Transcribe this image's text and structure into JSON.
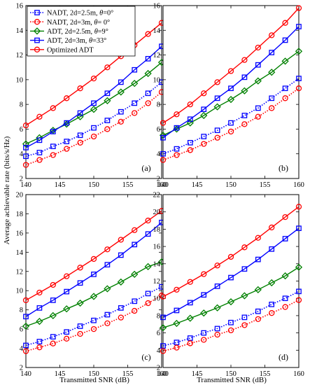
{
  "figure": {
    "ylabel": "Average achievable rate (bits/s/Hz)",
    "xlabel": "Transmitted SNR (dB)"
  },
  "legend": [
    {
      "label": "NADT, 2d=2.5m, θ=0°",
      "color": "#0000ff",
      "marker": "square",
      "dash": "dot"
    },
    {
      "label": "NADT, 2d=3m, θ= 0°",
      "color": "#ff0000",
      "marker": "circle",
      "dash": "dot"
    },
    {
      "label": "ADT, 2d=2.5m, θ=9°",
      "color": "#008000",
      "marker": "diamond",
      "dash": "solid"
    },
    {
      "label": "ADT, 2d=3m, θ=33°",
      "color": "#0000ff",
      "marker": "square",
      "dash": "solid"
    },
    {
      "label": "Optimized ADT",
      "color": "#ff0000",
      "marker": "circle",
      "dash": "solid"
    }
  ],
  "chart_data": [
    {
      "type": "line",
      "panel_label": "(a)",
      "x": [
        140,
        142,
        144,
        146,
        148,
        150,
        152,
        154,
        156,
        158,
        160
      ],
      "xlim": [
        140,
        160
      ],
      "ylim": [
        2,
        16
      ],
      "xticks": [
        "140",
        "145",
        "150",
        "155",
        "160"
      ],
      "yticks": [
        "2",
        "4",
        "6",
        "8",
        "10",
        "12",
        "14",
        "16"
      ],
      "series": [
        {
          "name": "NADT, 2d=2.5m, θ=0°",
          "color": "#0000ff",
          "marker": "square",
          "dash": "dot",
          "values": [
            3.8,
            4.1,
            4.6,
            5.0,
            5.5,
            6.1,
            6.7,
            7.4,
            8.1,
            8.9,
            9.8
          ]
        },
        {
          "name": "NADT, 2d=3m, θ= 0°",
          "color": "#ff0000",
          "marker": "circle",
          "dash": "dot",
          "values": [
            3.1,
            3.5,
            3.9,
            4.4,
            4.9,
            5.4,
            6.0,
            6.6,
            7.3,
            8.1,
            9.0
          ]
        },
        {
          "name": "ADT, 2d=2.5m, θ=9°",
          "color": "#008000",
          "marker": "diamond",
          "dash": "solid",
          "values": [
            4.8,
            5.3,
            5.9,
            6.4,
            7.0,
            7.6,
            8.3,
            9.0,
            9.7,
            10.5,
            11.4
          ]
        },
        {
          "name": "ADT, 2d=3m, θ=33°",
          "color": "#0000ff",
          "marker": "square",
          "dash": "solid",
          "values": [
            4.5,
            5.1,
            5.8,
            6.5,
            7.3,
            8.1,
            8.9,
            9.8,
            10.8,
            11.7,
            12.7
          ]
        },
        {
          "name": "Optimized ADT",
          "color": "#ff0000",
          "marker": "circle",
          "dash": "solid",
          "values": [
            6.3,
            7.0,
            7.7,
            8.5,
            9.3,
            10.1,
            11.0,
            11.9,
            12.8,
            13.7,
            14.6
          ]
        }
      ]
    },
    {
      "type": "line",
      "panel_label": "(b)",
      "x": [
        140,
        142,
        144,
        146,
        148,
        150,
        152,
        154,
        156,
        158,
        160
      ],
      "xlim": [
        140,
        160
      ],
      "ylim": [
        2,
        16
      ],
      "xticks": [
        "140",
        "145",
        "150",
        "155",
        "160"
      ],
      "yticks": [
        "2",
        "4",
        "6",
        "8",
        "10",
        "12",
        "14",
        "16"
      ],
      "series": [
        {
          "name": "NADT, 2d=2.5m, θ=0°",
          "color": "#0000ff",
          "marker": "square",
          "dash": "dot",
          "values": [
            4.0,
            4.4,
            4.9,
            5.4,
            5.9,
            6.5,
            7.1,
            7.7,
            8.5,
            9.3,
            10.1
          ]
        },
        {
          "name": "NADT, 2d=3m, θ= 0°",
          "color": "#ff0000",
          "marker": "circle",
          "dash": "dot",
          "values": [
            3.5,
            3.9,
            4.3,
            4.8,
            5.3,
            5.8,
            6.4,
            7.0,
            7.7,
            8.5,
            9.3
          ]
        },
        {
          "name": "ADT, 2d=2.5m, θ=9°",
          "color": "#008000",
          "marker": "diamond",
          "dash": "solid",
          "values": [
            5.5,
            6.0,
            6.5,
            7.1,
            7.8,
            8.4,
            9.1,
            9.9,
            10.6,
            11.5,
            12.3
          ]
        },
        {
          "name": "ADT, 2d=3m, θ=33°",
          "color": "#0000ff",
          "marker": "square",
          "dash": "solid",
          "values": [
            5.3,
            6.1,
            6.8,
            7.6,
            8.5,
            9.3,
            10.2,
            11.2,
            12.2,
            13.2,
            14.3
          ]
        },
        {
          "name": "Optimized ADT",
          "color": "#ff0000",
          "marker": "circle",
          "dash": "solid",
          "values": [
            6.5,
            7.2,
            8.0,
            8.9,
            9.8,
            10.7,
            11.6,
            12.6,
            13.6,
            14.6,
            15.8
          ]
        }
      ]
    },
    {
      "type": "line",
      "panel_label": "(c)",
      "x": [
        140,
        142,
        144,
        146,
        148,
        150,
        152,
        154,
        156,
        158,
        160
      ],
      "xlim": [
        140,
        160
      ],
      "ylim": [
        2,
        20
      ],
      "xticks": [
        "140",
        "145",
        "150",
        "155",
        "160"
      ],
      "yticks": [
        "2",
        "4",
        "6",
        "8",
        "10",
        "12",
        "14",
        "16",
        "18",
        "20"
      ],
      "series": [
        {
          "name": "NADT, 2d=2.5m, θ=0°",
          "color": "#0000ff",
          "marker": "square",
          "dash": "dot",
          "values": [
            4.3,
            4.7,
            5.2,
            5.7,
            6.3,
            6.9,
            7.5,
            8.2,
            8.9,
            9.7,
            10.4
          ]
        },
        {
          "name": "NADT, 2d=3m, θ= 0°",
          "color": "#ff0000",
          "marker": "circle",
          "dash": "dot",
          "values": [
            3.7,
            4.1,
            4.5,
            5.0,
            5.5,
            6.0,
            6.6,
            7.2,
            7.9,
            8.7,
            9.5
          ]
        },
        {
          "name": "ADT, 2d=2.5m, θ=9°",
          "color": "#008000",
          "marker": "diamond",
          "dash": "solid",
          "values": [
            6.3,
            6.8,
            7.4,
            8.1,
            8.7,
            9.4,
            10.2,
            10.9,
            11.7,
            12.5,
            13.0
          ]
        },
        {
          "name": "ADT, 2d=3m, θ=33°",
          "color": "#0000ff",
          "marker": "square",
          "dash": "solid",
          "values": [
            7.3,
            8.2,
            9.0,
            9.9,
            10.8,
            11.7,
            12.7,
            13.7,
            14.8,
            15.9,
            17.1
          ]
        },
        {
          "name": "Optimized ADT",
          "color": "#ff0000",
          "marker": "circle",
          "dash": "solid",
          "values": [
            9.0,
            9.8,
            10.6,
            11.5,
            12.4,
            13.3,
            14.3,
            15.3,
            16.3,
            17.3,
            18.3
          ]
        }
      ]
    },
    {
      "type": "line",
      "panel_label": "(d)",
      "x": [
        140,
        142,
        144,
        146,
        148,
        150,
        152,
        154,
        156,
        158,
        160
      ],
      "xlim": [
        140,
        160
      ],
      "ylim": [
        2,
        22
      ],
      "xticks": [
        "140",
        "145",
        "150",
        "155",
        "160"
      ],
      "yticks": [
        "2",
        "4",
        "6",
        "8",
        "10",
        "12",
        "14",
        "16",
        "18",
        "20",
        "22"
      ],
      "series": [
        {
          "name": "NADT, 2d=2.5m, θ=0°",
          "color": "#0000ff",
          "marker": "square",
          "dash": "dot",
          "values": [
            4.5,
            4.9,
            5.4,
            6.0,
            6.5,
            7.2,
            7.8,
            8.5,
            9.3,
            10.0,
            10.8
          ]
        },
        {
          "name": "NADT, 2d=3m, θ= 0°",
          "color": "#ff0000",
          "marker": "circle",
          "dash": "dot",
          "values": [
            3.9,
            4.3,
            4.8,
            5.2,
            5.8,
            6.3,
            6.9,
            7.6,
            8.3,
            9.0,
            9.8
          ]
        },
        {
          "name": "ADT, 2d=2.5m, θ=9°",
          "color": "#008000",
          "marker": "diamond",
          "dash": "solid",
          "values": [
            6.6,
            7.1,
            7.7,
            8.3,
            8.9,
            9.6,
            10.3,
            11.0,
            11.8,
            12.6,
            13.6
          ]
        },
        {
          "name": "ADT, 2d=3m, θ=33°",
          "color": "#0000ff",
          "marker": "square",
          "dash": "solid",
          "values": [
            7.8,
            8.6,
            9.5,
            10.4,
            11.4,
            12.4,
            13.4,
            14.5,
            15.7,
            16.9,
            18.1
          ]
        },
        {
          "name": "Optimized ADT",
          "color": "#ff0000",
          "marker": "circle",
          "dash": "solid",
          "values": [
            10.2,
            11.0,
            11.9,
            12.8,
            13.8,
            14.8,
            15.9,
            17.0,
            18.2,
            19.4,
            20.6
          ]
        }
      ]
    }
  ]
}
